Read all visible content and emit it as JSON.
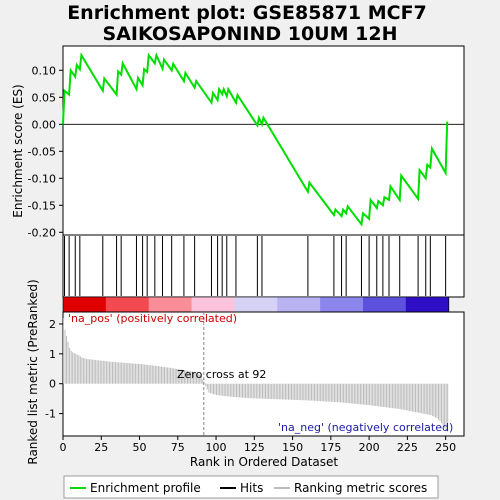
{
  "chart_data": {
    "type": "line",
    "title": "Enrichment plot: GSE85871 MCF7",
    "subtitle": "SAIKOSAPONIND 10UM 12H",
    "es_panel": {
      "ylabel": "Enrichment score (ES)",
      "ylim": [
        -0.205,
        0.145
      ],
      "yticks": [
        -0.2,
        -0.15,
        -0.1,
        -0.05,
        0.0,
        0.05,
        0.1
      ],
      "ytick_labels": [
        "-0.20",
        "-0.15",
        "-0.10",
        "-0.05",
        "0.00",
        "0.05",
        "0.10"
      ],
      "line_color": "#00dd00",
      "series": [
        {
          "name": "Enrichment profile",
          "x": [
            0,
            1,
            4,
            5,
            8,
            9,
            11,
            12,
            26,
            27,
            35,
            36,
            38,
            39,
            48,
            49,
            52,
            53,
            55,
            56,
            60,
            61,
            65,
            66,
            71,
            72,
            79,
            80,
            86,
            87,
            97,
            98,
            101,
            102,
            104,
            105,
            107,
            108,
            113,
            114,
            127,
            128,
            130,
            131,
            160,
            161,
            177,
            178,
            182,
            183,
            185,
            186,
            195,
            196,
            200,
            201,
            205,
            206,
            209,
            210,
            213,
            214,
            220,
            221,
            232,
            233,
            237,
            238,
            240,
            241,
            250,
            251
          ],
          "y": [
            0.0,
            0.062,
            0.055,
            0.1,
            0.088,
            0.11,
            0.102,
            0.128,
            0.062,
            0.085,
            0.055,
            0.098,
            0.092,
            0.113,
            0.065,
            0.086,
            0.072,
            0.102,
            0.097,
            0.128,
            0.113,
            0.128,
            0.103,
            0.12,
            0.1,
            0.112,
            0.08,
            0.095,
            0.068,
            0.08,
            0.04,
            0.058,
            0.045,
            0.065,
            0.056,
            0.065,
            0.052,
            0.065,
            0.04,
            0.054,
            -0.002,
            0.012,
            0.0,
            0.012,
            -0.125,
            -0.108,
            -0.168,
            -0.158,
            -0.17,
            -0.158,
            -0.165,
            -0.152,
            -0.185,
            -0.165,
            -0.175,
            -0.14,
            -0.155,
            -0.142,
            -0.15,
            -0.135,
            -0.14,
            -0.115,
            -0.14,
            -0.095,
            -0.138,
            -0.085,
            -0.1,
            -0.075,
            -0.08,
            -0.045,
            -0.09,
            0.005
          ]
        }
      ]
    },
    "hits": {
      "name": "Hits",
      "x": [
        1,
        4,
        8,
        11,
        26,
        35,
        38,
        48,
        52,
        55,
        60,
        65,
        71,
        79,
        86,
        97,
        101,
        104,
        107,
        113,
        127,
        130,
        160,
        177,
        182,
        185,
        195,
        200,
        205,
        209,
        213,
        220,
        232,
        237,
        240,
        250
      ]
    },
    "ranking_panel": {
      "ylabel": "Ranked list metric (PreRanked)",
      "ylim": [
        -1.75,
        2.4
      ],
      "yticks": [
        -1,
        0,
        1,
        2
      ],
      "ytick_labels": [
        "-1",
        "0",
        "1",
        "2"
      ],
      "annotations": {
        "pos_label": "'na_pos' (positively correlated)",
        "neg_label": "'na_neg' (negatively correlated)",
        "zero_cross": "Zero cross at 92"
      },
      "zero_cross_rank": 92,
      "n_ranks": 252,
      "profile": {
        "rank": [
          0,
          1,
          2,
          3,
          4,
          5,
          6,
          8,
          10,
          12,
          15,
          20,
          30,
          40,
          50,
          60,
          70,
          80,
          86,
          90,
          92,
          95,
          100,
          110,
          120,
          140,
          160,
          180,
          200,
          220,
          230,
          240,
          244,
          246,
          248,
          250,
          251
        ],
        "value": [
          2.2,
          1.8,
          1.6,
          1.4,
          1.2,
          1.1,
          1.05,
          1.0,
          0.95,
          0.88,
          0.83,
          0.8,
          0.74,
          0.7,
          0.66,
          0.6,
          0.53,
          0.45,
          0.38,
          0.28,
          0.02,
          -0.3,
          -0.38,
          -0.44,
          -0.48,
          -0.52,
          -0.56,
          -0.62,
          -0.72,
          -0.85,
          -0.95,
          -1.05,
          -1.15,
          -1.25,
          -1.4,
          -1.55,
          -1.6
        ]
      }
    },
    "xaxis": {
      "label": "Rank in Ordered Dataset",
      "ticks": [
        0,
        25,
        50,
        75,
        100,
        125,
        150,
        175,
        200,
        225,
        250
      ],
      "xlim": [
        0,
        262
      ]
    },
    "legend": {
      "position": "bottom",
      "items": [
        {
          "label": "Enrichment profile",
          "color": "#00dd00"
        },
        {
          "label": "Hits",
          "color": "#000000"
        },
        {
          "label": "Ranking metric scores",
          "color": "#bbbbbb"
        }
      ]
    },
    "colors": {
      "pos_text": "#cc0000",
      "neg_text": "#1a1aaa",
      "bar_colors": [
        "#e00000",
        "#f24a50",
        "#f98e98",
        "#fcc3dd",
        "#d6d2f6",
        "#b9b3f2",
        "#8c85ec",
        "#5c52de",
        "#2e0fc6"
      ]
    }
  }
}
